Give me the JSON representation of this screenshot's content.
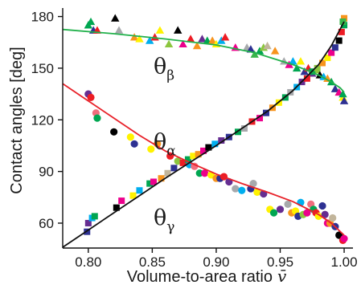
{
  "chart_data": {
    "type": "scatter",
    "title": "",
    "xlabel": "Volume-to-area ratio",
    "xlabel_symbol": "v̄",
    "ylabel": "Contact  angles  [deg]",
    "xlim": [
      0.78,
      1.005
    ],
    "ylim": [
      46,
      184
    ],
    "xticks": [
      0.8,
      0.85,
      0.9,
      0.95,
      1.0
    ],
    "xtick_labels": [
      "0.80",
      "0.85",
      "0.90",
      "0.95",
      "1.00"
    ],
    "yticks": [
      60,
      90,
      120,
      150,
      180
    ],
    "ytick_labels": [
      "60",
      "90",
      "120",
      "150",
      "180"
    ],
    "grid": false,
    "legend": "none",
    "annotations": [
      {
        "main": "θ",
        "sub": "β",
        "x": 0.851,
        "y": 147
      },
      {
        "main": "θ",
        "sub": "α",
        "x": 0.851,
        "y": 103
      },
      {
        "main": "θ",
        "sub": "γ",
        "x": 0.851,
        "y": 59
      }
    ],
    "marker_palette": [
      "#2e3192",
      "#00a651",
      "#ed1c24",
      "#f7941d",
      "#fff200",
      "#00aeef",
      "#ec008c",
      "#662d91",
      "#8cc63f",
      "#a7a9ac",
      "#000000",
      "#f26d7d",
      "#39b54a",
      "#c2b59b",
      "#6dcff6"
    ],
    "series": [
      {
        "name": "",
        "marker": "triangle",
        "fit_color": "#21b14b",
        "fit": [
          [
            0.78,
            172.5
          ],
          [
            0.82,
            170
          ],
          [
            0.86,
            167
          ],
          [
            0.9,
            163.5
          ],
          [
            0.93,
            159
          ],
          [
            0.96,
            152
          ],
          [
            0.98,
            146
          ],
          [
            0.99,
            142
          ],
          [
            0.997,
            138.5
          ],
          [
            1.0,
            136
          ]
        ],
        "points": [
          [
            0.8,
            175,
            1
          ],
          [
            0.802,
            177,
            1
          ],
          [
            0.804,
            172,
            0
          ],
          [
            0.807,
            172,
            2
          ],
          [
            0.821,
            179,
            10
          ],
          [
            0.824,
            172,
            9
          ],
          [
            0.836,
            168,
            3
          ],
          [
            0.84,
            167,
            4
          ],
          [
            0.848,
            166,
            5
          ],
          [
            0.852,
            168,
            2
          ],
          [
            0.856,
            172,
            4
          ],
          [
            0.863,
            164,
            8
          ],
          [
            0.87,
            172,
            10
          ],
          [
            0.874,
            164,
            6
          ],
          [
            0.88,
            167,
            2
          ],
          [
            0.885,
            163,
            3
          ],
          [
            0.889,
            167,
            7
          ],
          [
            0.893,
            166,
            1
          ],
          [
            0.897,
            166,
            3
          ],
          [
            0.9,
            164,
            4
          ],
          [
            0.904,
            166,
            5
          ],
          [
            0.907,
            168,
            2
          ],
          [
            0.915,
            162,
            6
          ],
          [
            0.924,
            162,
            9
          ],
          [
            0.927,
            161,
            0
          ],
          [
            0.93,
            158,
            12
          ],
          [
            0.934,
            160,
            1
          ],
          [
            0.937,
            162,
            8
          ],
          [
            0.94,
            163,
            13
          ],
          [
            0.946,
            160,
            3
          ],
          [
            0.953,
            154,
            9
          ],
          [
            0.957,
            152,
            6
          ],
          [
            0.96,
            154,
            5
          ],
          [
            0.963,
            150,
            1
          ],
          [
            0.966,
            154,
            4
          ],
          [
            0.969,
            148,
            0
          ],
          [
            0.972,
            150,
            2
          ],
          [
            0.975,
            147,
            7
          ],
          [
            0.978,
            149,
            8
          ],
          [
            0.981,
            146,
            10
          ],
          [
            0.984,
            145,
            5
          ],
          [
            0.987,
            144,
            3
          ],
          [
            0.99,
            142,
            1
          ],
          [
            0.993,
            138,
            0
          ],
          [
            0.996,
            136,
            6
          ],
          [
            0.999,
            133,
            4
          ],
          [
            1.0,
            131,
            0
          ],
          [
            0.999,
            135,
            1
          ]
        ]
      },
      {
        "name": "",
        "marker": "circle",
        "fit_color": "#e8222a",
        "fit": [
          [
            0.78,
            141
          ],
          [
            0.8,
            131
          ],
          [
            0.82,
            121
          ],
          [
            0.84,
            111
          ],
          [
            0.86,
            102
          ],
          [
            0.88,
            95
          ],
          [
            0.9,
            88.5
          ],
          [
            0.92,
            83
          ],
          [
            0.94,
            78
          ],
          [
            0.96,
            72.5
          ],
          [
            0.98,
            65
          ],
          [
            0.99,
            60
          ],
          [
            1.0,
            53
          ]
        ],
        "points": [
          [
            0.8,
            135,
            7
          ],
          [
            0.802,
            133,
            2
          ],
          [
            0.806,
            124,
            11
          ],
          [
            0.807,
            121,
            1
          ],
          [
            0.82,
            113,
            10
          ],
          [
            0.833,
            110,
            4
          ],
          [
            0.836,
            106,
            0
          ],
          [
            0.849,
            103,
            4
          ],
          [
            0.854,
            106,
            3
          ],
          [
            0.864,
            99,
            2
          ],
          [
            0.87,
            96,
            8
          ],
          [
            0.879,
            94,
            5
          ],
          [
            0.883,
            93,
            11
          ],
          [
            0.887,
            89,
            1
          ],
          [
            0.891,
            89,
            6
          ],
          [
            0.896,
            88,
            4
          ],
          [
            0.9,
            86,
            3
          ],
          [
            0.903,
            86,
            0
          ],
          [
            0.906,
            87,
            2
          ],
          [
            0.91,
            84,
            7
          ],
          [
            0.915,
            80,
            9
          ],
          [
            0.92,
            79,
            5
          ],
          [
            0.927,
            80,
            0
          ],
          [
            0.929,
            83,
            9
          ],
          [
            0.932,
            78,
            4
          ],
          [
            0.937,
            77,
            7
          ],
          [
            0.942,
            68,
            4
          ],
          [
            0.945,
            66,
            1
          ],
          [
            0.95,
            68,
            7
          ],
          [
            0.956,
            71,
            9
          ],
          [
            0.959,
            66,
            3
          ],
          [
            0.962,
            67,
            4
          ],
          [
            0.964,
            64,
            0
          ],
          [
            0.966,
            72,
            5
          ],
          [
            0.968,
            65,
            8
          ],
          [
            0.971,
            66,
            6
          ],
          [
            0.974,
            71,
            11
          ],
          [
            0.976,
            68,
            1
          ],
          [
            0.978,
            66,
            2
          ],
          [
            0.98,
            64,
            4
          ],
          [
            0.983,
            70,
            0
          ],
          [
            0.985,
            65,
            7
          ],
          [
            0.987,
            60,
            6
          ],
          [
            0.989,
            60,
            3
          ],
          [
            0.991,
            63,
            13
          ],
          [
            0.993,
            58,
            0
          ],
          [
            0.996,
            53,
            10
          ],
          [
            0.999,
            50,
            2
          ],
          [
            1.0,
            51,
            6
          ]
        ]
      },
      {
        "name": "",
        "marker": "square",
        "fit_color": "#111111",
        "fit": [
          [
            0.78,
            46
          ],
          [
            0.8,
            56
          ],
          [
            0.82,
            66
          ],
          [
            0.84,
            76
          ],
          [
            0.86,
            86
          ],
          [
            0.88,
            95.5
          ],
          [
            0.9,
            105
          ],
          [
            0.92,
            115
          ],
          [
            0.94,
            125
          ],
          [
            0.96,
            137
          ],
          [
            0.98,
            152
          ],
          [
            0.99,
            163
          ],
          [
            1.0,
            177
          ]
        ],
        "points": [
          [
            0.799,
            55,
            0
          ],
          [
            0.8,
            60,
            7
          ],
          [
            0.803,
            63,
            5
          ],
          [
            0.805,
            64,
            1
          ],
          [
            0.822,
            69,
            10
          ],
          [
            0.826,
            73,
            6
          ],
          [
            0.835,
            76,
            4
          ],
          [
            0.84,
            79,
            5
          ],
          [
            0.848,
            83,
            1
          ],
          [
            0.851,
            84,
            6
          ],
          [
            0.857,
            86,
            3
          ],
          [
            0.862,
            89,
            13
          ],
          [
            0.867,
            92,
            0
          ],
          [
            0.874,
            95,
            2
          ],
          [
            0.878,
            97,
            1
          ],
          [
            0.882,
            99,
            4
          ],
          [
            0.886,
            100,
            3
          ],
          [
            0.89,
            102,
            6
          ],
          [
            0.894,
            104,
            10
          ],
          [
            0.899,
            106,
            5
          ],
          [
            0.904,
            108,
            7
          ],
          [
            0.91,
            110,
            0
          ],
          [
            0.917,
            113,
            1
          ],
          [
            0.922,
            115,
            9
          ],
          [
            0.928,
            119,
            2
          ],
          [
            0.934,
            121,
            6
          ],
          [
            0.939,
            124,
            0
          ],
          [
            0.944,
            127,
            3
          ],
          [
            0.949,
            130,
            4
          ],
          [
            0.954,
            133,
            1
          ],
          [
            0.958,
            136,
            9
          ],
          [
            0.963,
            139,
            5
          ],
          [
            0.967,
            142,
            7
          ],
          [
            0.971,
            144,
            2
          ],
          [
            0.975,
            148,
            1
          ],
          [
            0.979,
            150,
            8
          ],
          [
            0.983,
            153,
            3
          ],
          [
            0.987,
            156,
            4
          ],
          [
            0.99,
            159,
            6
          ],
          [
            0.993,
            162,
            0
          ],
          [
            0.996,
            166,
            10
          ],
          [
            0.998,
            171,
            2
          ],
          [
            1.0,
            175,
            1
          ],
          [
            1.0,
            179,
            3
          ],
          [
            0.999,
            177,
            12
          ]
        ]
      }
    ]
  }
}
